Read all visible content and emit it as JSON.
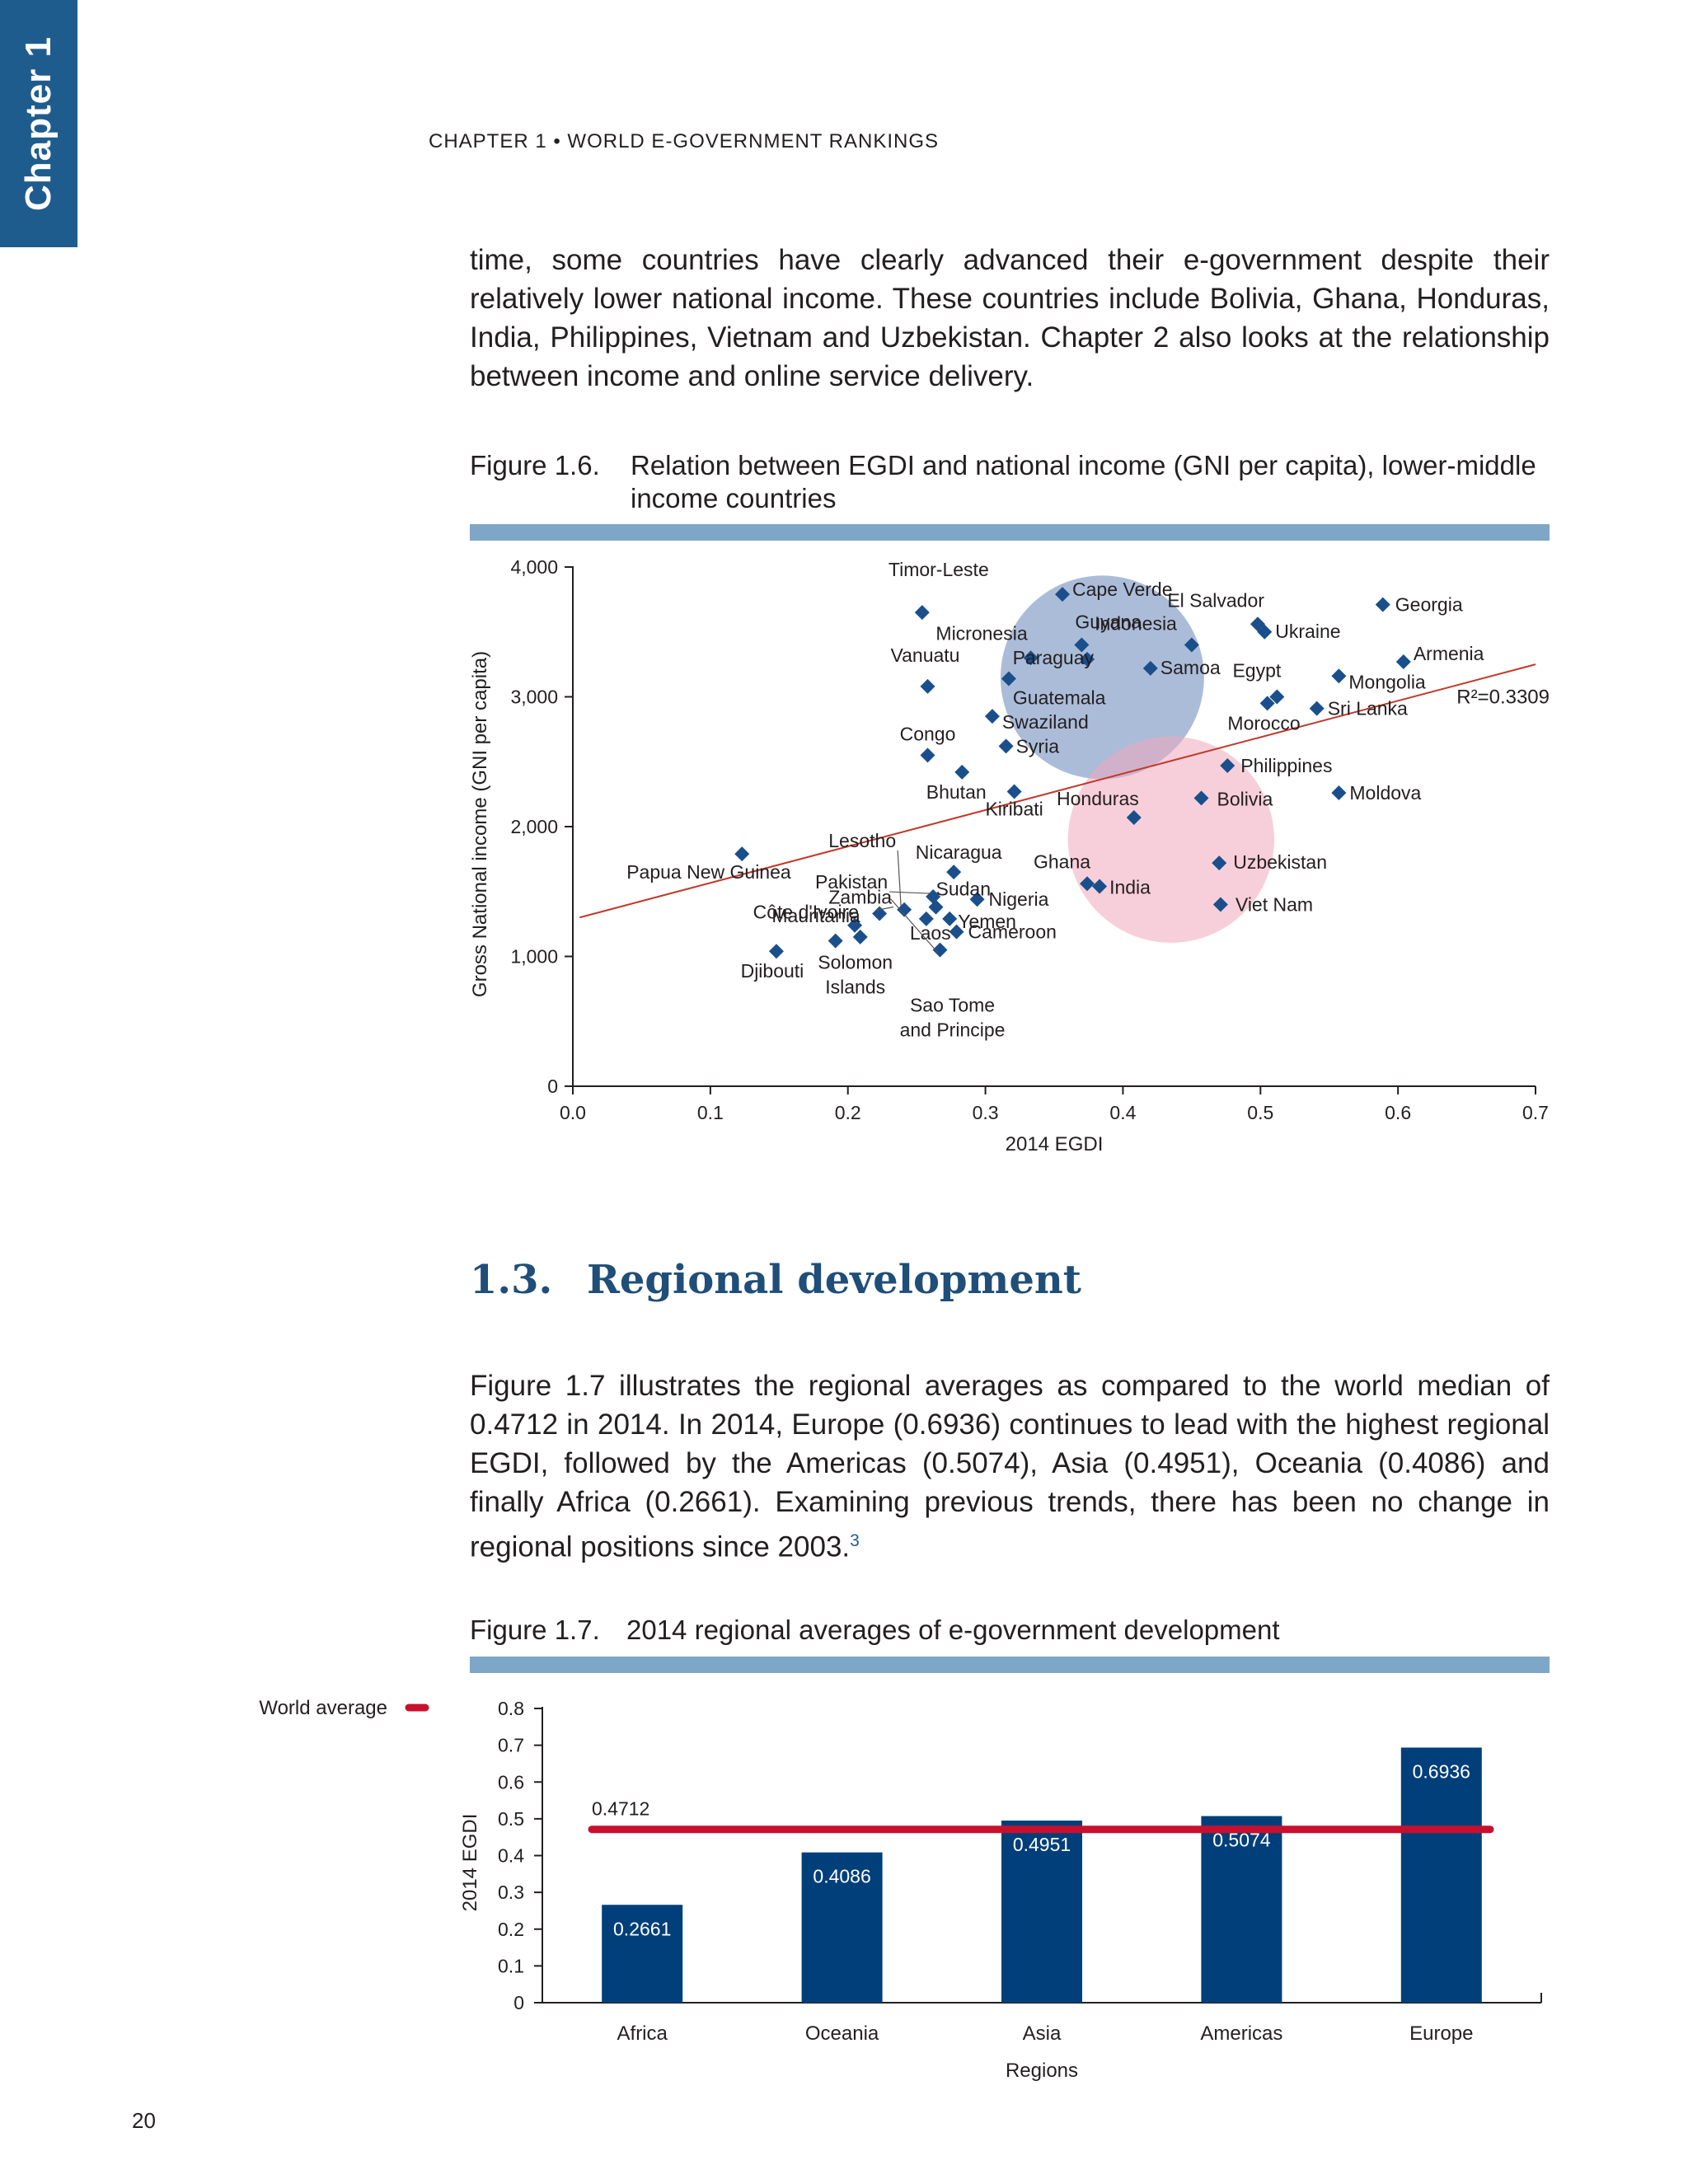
{
  "chapter_tab": "Chapter 1",
  "running_head": "CHAPTER 1 • WORLD E-GOVERNMENT RANKINGS",
  "intro_paragraph": "time, some countries have clearly advanced their e-government despite their relatively lower national income. These countries include Bolivia, Ghana, Hon­duras, India, Philippines, Vietnam and Uzbekistan. Chapter 2 also looks at the relationship between income and online service delivery.",
  "figure_1_6": {
    "number": "Figure 1.6.",
    "caption": "Relation between EGDI and national income (GNI per capita), lower-middle income countries"
  },
  "section": {
    "number": "1.3.",
    "title": "Regional development",
    "paragraph": "Figure 1.7 illustrates the regional averages as compared to the world median of 0.4712 in 2014. In 2014, Europe (0.6936) continues to lead with the highest regional EGDI, followed by the Americas (0.5074), Asia (0.4951), Oceania (0.4086) and finally Africa (0.2661). Examining previous trends, there has been no change in regional positions since 2003.",
    "footnote_ref": "3"
  },
  "figure_1_7": {
    "number": "Figure 1.7.",
    "caption": "2014 regional averages of e-government development"
  },
  "page_number": "20",
  "colors": {
    "tab": "#1f5c8e",
    "marker": "#1a4f8b",
    "bar": "#003f7a",
    "world_line": "#c8102e",
    "trend": "#c0392b",
    "heading": "#1f4e79",
    "blue_circle": "#8fa5cc",
    "pink_circle": "#f0a8bb"
  },
  "chart_data": [
    {
      "type": "scatter",
      "xlabel": "2014 EGDI",
      "ylabel": "Gross National income (GNI per capita)",
      "xlim": [
        0,
        0.7
      ],
      "ylim": [
        0,
        4000
      ],
      "xticks": [
        0.0,
        0.1,
        0.2,
        0.3,
        0.4,
        0.5,
        0.6,
        0.7
      ],
      "xtick_labels": [
        "0.0",
        "0.1",
        "0.2",
        "0.3",
        "0.4",
        "0.5",
        "0.6",
        "0.7"
      ],
      "yticks": [
        0,
        1000,
        2000,
        3000,
        4000
      ],
      "ytick_labels": [
        "0",
        "1,000",
        "2,000",
        "3,000",
        "4,000"
      ],
      "r_squared_label": "R²=0.3309",
      "trendline": {
        "x": [
          0.005,
          0.7
        ],
        "y": [
          1300,
          3250
        ]
      },
      "highlight_circles": [
        {
          "center": [
            0.385,
            3150
          ],
          "radius_x": 0.074,
          "color": "blue"
        },
        {
          "center": [
            0.435,
            1900
          ],
          "radius_x": 0.075,
          "color": "pink"
        }
      ],
      "points": [
        {
          "name": "Timor-Leste",
          "x": 0.254,
          "y": 3650
        },
        {
          "name": "Cape Verde",
          "x": 0.356,
          "y": 3790
        },
        {
          "name": "Guyana",
          "x": 0.37,
          "y": 3400
        },
        {
          "name": "Indonesia",
          "x": 0.45,
          "y": 3400
        },
        {
          "name": "El Salvador",
          "x": 0.498,
          "y": 3560
        },
        {
          "name": "Ukraine",
          "x": 0.503,
          "y": 3500
        },
        {
          "name": "Georgia",
          "x": 0.589,
          "y": 3710
        },
        {
          "name": "Micronesia",
          "x": 0.333,
          "y": 3300
        },
        {
          "name": "Armenia",
          "x": 0.604,
          "y": 3270
        },
        {
          "name": "Vanuatu",
          "x": 0.258,
          "y": 3080
        },
        {
          "name": "Paraguay",
          "x": 0.374,
          "y": 3290
        },
        {
          "name": "Samoa",
          "x": 0.42,
          "y": 3220
        },
        {
          "name": "Mongolia",
          "x": 0.557,
          "y": 3160
        },
        {
          "name": "Guatemala",
          "x": 0.317,
          "y": 3140
        },
        {
          "name": "Egypt",
          "x": 0.512,
          "y": 3000
        },
        {
          "name": "Morocco",
          "x": 0.505,
          "y": 2950
        },
        {
          "name": "Sri Lanka",
          "x": 0.541,
          "y": 2910
        },
        {
          "name": "Swaziland",
          "x": 0.305,
          "y": 2850
        },
        {
          "name": "Syria",
          "x": 0.315,
          "y": 2620
        },
        {
          "name": "Congo",
          "x": 0.258,
          "y": 2550
        },
        {
          "name": "Philippines",
          "x": 0.476,
          "y": 2470
        },
        {
          "name": "Bhutan",
          "x": 0.283,
          "y": 2420
        },
        {
          "name": "Kiribati",
          "x": 0.321,
          "y": 2270
        },
        {
          "name": "Bolivia",
          "x": 0.457,
          "y": 2220
        },
        {
          "name": "Moldova",
          "x": 0.557,
          "y": 2260
        },
        {
          "name": "Honduras",
          "x": 0.408,
          "y": 2070
        },
        {
          "name": "Papua New Guinea",
          "x": 0.123,
          "y": 1790
        },
        {
          "name": "Uzbekistan",
          "x": 0.47,
          "y": 1720
        },
        {
          "name": "Nicaragua",
          "x": 0.277,
          "y": 1650
        },
        {
          "name": "Ghana",
          "x": 0.374,
          "y": 1560
        },
        {
          "name": "India",
          "x": 0.383,
          "y": 1540
        },
        {
          "name": "Nigeria",
          "x": 0.294,
          "y": 1440
        },
        {
          "name": "Pakistan",
          "x": 0.262,
          "y": 1460
        },
        {
          "name": "Sudan",
          "x": 0.264,
          "y": 1380
        },
        {
          "name": "Lesotho",
          "x": 0.241,
          "y": 1360
        },
        {
          "name": "Viet Nam",
          "x": 0.471,
          "y": 1400
        },
        {
          "name": "Zambia",
          "x": 0.223,
          "y": 1330
        },
        {
          "name": "Yemen",
          "x": 0.274,
          "y": 1290
        },
        {
          "name": "Laos",
          "x": 0.257,
          "y": 1290
        },
        {
          "name": "Côte d'Ivoire",
          "x": 0.205,
          "y": 1240
        },
        {
          "name": "Cameroon",
          "x": 0.279,
          "y": 1190
        },
        {
          "name": "Mauritania",
          "x": 0.209,
          "y": 1150
        },
        {
          "name": "Solomon Islands",
          "x": 0.191,
          "y": 1120
        },
        {
          "name": "Sao Tome and Principe",
          "x": 0.267,
          "y": 1050
        },
        {
          "name": "Djibouti",
          "x": 0.148,
          "y": 1040
        }
      ]
    },
    {
      "type": "bar",
      "xlabel": "Regions",
      "ylabel": "2014 EGDI",
      "ylim": [
        0,
        0.8
      ],
      "yticks": [
        0,
        0.1,
        0.2,
        0.3,
        0.4,
        0.5,
        0.6,
        0.7,
        0.8
      ],
      "ytick_labels": [
        "0",
        "0.1",
        "0.2",
        "0.3",
        "0.4",
        "0.5",
        "0.6",
        "0.7",
        "0.8"
      ],
      "categories": [
        "Africa",
        "Oceania",
        "Asia",
        "Americas",
        "Europe"
      ],
      "values": [
        0.2661,
        0.4086,
        0.4951,
        0.5074,
        0.6936
      ],
      "value_labels": [
        "0.2661",
        "0.4086",
        "0.4951",
        "0.5074",
        "0.6936"
      ],
      "reference_line": {
        "name": "World average",
        "value": 0.4712,
        "label": "0.4712"
      },
      "legend": {
        "label": "World average",
        "placement": "top-left"
      }
    }
  ]
}
